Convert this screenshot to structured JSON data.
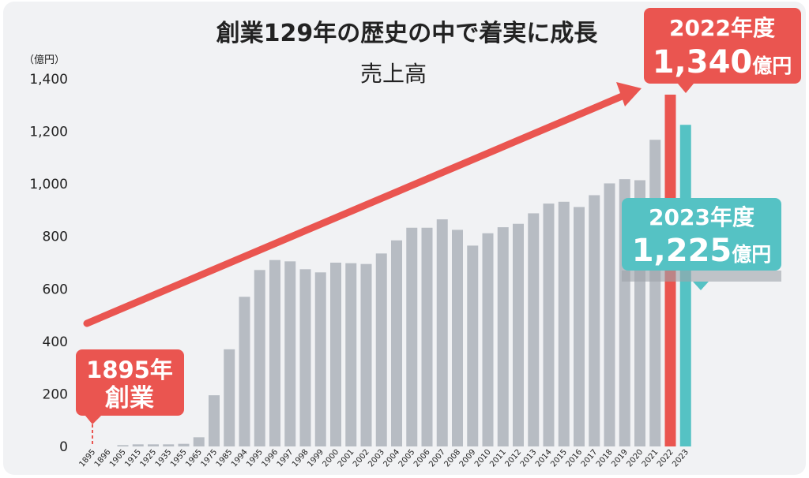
{
  "title": "創業129年の歴史の中で着実に成長",
  "subtitle": "売上高",
  "unit_label": "（億円）",
  "colors": {
    "background": "#f1f2f4",
    "bar": "#b7bcc3",
    "highlight_red": "#ea5550",
    "highlight_teal": "#55c2c4",
    "text": "#222222"
  },
  "callouts": {
    "founding": {
      "line1": "1895年",
      "line2": "創業"
    },
    "fy2022": {
      "line1": "2022年度",
      "value": "1,340",
      "unit": "億円"
    },
    "fy2023": {
      "line1": "2023年度",
      "value": "1,225",
      "unit": "億円"
    }
  },
  "chart_data": {
    "type": "bar",
    "title": "創業129年の歴史の中で着実に成長",
    "subtitle": "売上高",
    "ylabel": "（億円）",
    "ylim": [
      0,
      1400
    ],
    "yticks": [
      "0",
      "200",
      "400",
      "600",
      "800",
      "1,000",
      "1,200",
      "1,400"
    ],
    "grid": false,
    "categories": [
      "1895",
      "1896",
      "1905",
      "1915",
      "1925",
      "1935",
      "1955",
      "1965",
      "1975",
      "1985",
      "1994",
      "1995",
      "1996",
      "1997",
      "1998",
      "1999",
      "2000",
      "2001",
      "2002",
      "2003",
      "2004",
      "2005",
      "2006",
      "2007",
      "2008",
      "2009",
      "2010",
      "2011",
      "2012",
      "2013",
      "2014",
      "2015",
      "2016",
      "2017",
      "2018",
      "2019",
      "2020",
      "2021",
      "2022",
      "2023"
    ],
    "values": [
      0,
      0,
      5,
      8,
      8,
      8,
      10,
      35,
      195,
      370,
      570,
      672,
      710,
      705,
      675,
      663,
      700,
      698,
      695,
      735,
      785,
      833,
      833,
      865,
      825,
      765,
      812,
      835,
      848,
      888,
      925,
      932,
      912,
      957,
      1002,
      1018,
      1014,
      1168,
      1340,
      1225
    ],
    "highlight": {
      "2022": "red",
      "2023": "teal"
    }
  }
}
